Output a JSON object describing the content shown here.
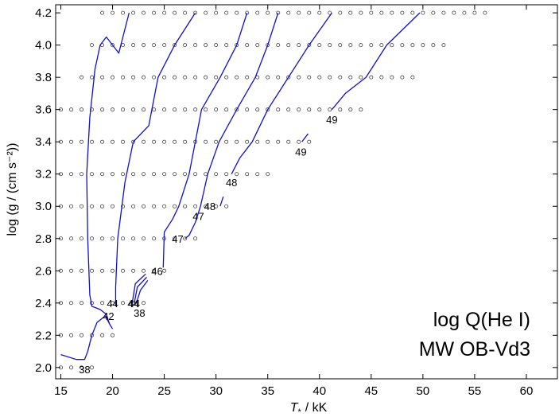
{
  "chart_data": {
    "type": "contour",
    "xlabel_main": "T",
    "xlabel_sub": "*",
    "xlabel_unit": "/ kK",
    "ylabel": "log (g / (cm s⁻²))",
    "xlim": [
      14.5,
      63
    ],
    "ylim": [
      1.93,
      4.25
    ],
    "xticks": [
      15,
      20,
      25,
      30,
      35,
      40,
      45,
      50,
      55,
      60
    ],
    "yticks": [
      2.0,
      2.2,
      2.4,
      2.6,
      2.8,
      3.0,
      3.2,
      3.4,
      3.6,
      3.8,
      4.0,
      4.2
    ],
    "ytick_labels": [
      "2.0",
      "2.2",
      "2.4",
      "2.6",
      "2.8",
      "3.0",
      "3.2",
      "3.4",
      "3.6",
      "3.8",
      "4.0",
      "4.2"
    ],
    "annotations": [
      "log Q(He I)",
      "MW OB-Vd3"
    ],
    "line_color": "#1010cc",
    "grid_points": {
      "x_step": 1,
      "rows": [
        {
          "logg": 2.0,
          "tmin": 15,
          "tmax": 18
        },
        {
          "logg": 2.2,
          "tmin": 15,
          "tmax": 20
        },
        {
          "logg": 2.4,
          "tmin": 15,
          "tmax": 23
        },
        {
          "logg": 2.6,
          "tmin": 15,
          "tmax": 25
        },
        {
          "logg": 2.8,
          "tmin": 15,
          "tmax": 28
        },
        {
          "logg": 3.0,
          "tmin": 15,
          "tmax": 31
        },
        {
          "logg": 3.2,
          "tmin": 15,
          "tmax": 35
        },
        {
          "logg": 3.4,
          "tmin": 15,
          "tmax": 39
        },
        {
          "logg": 3.6,
          "tmin": 15,
          "tmax": 44
        },
        {
          "logg": 3.8,
          "tmin": 17,
          "tmax": 49
        },
        {
          "logg": 4.0,
          "tmin": 18,
          "tmax": 52
        },
        {
          "logg": 4.2,
          "tmin": 19,
          "tmax": 56
        }
      ]
    },
    "contours": [
      {
        "level": "38",
        "points": [
          [
            15,
            2.08
          ],
          [
            16.5,
            2.05
          ],
          [
            17.3,
            2.05
          ],
          [
            17.6,
            2.1
          ],
          [
            18,
            2.2
          ],
          [
            18.5,
            2.28
          ],
          [
            19.3,
            2.32
          ],
          [
            19.8,
            2.26
          ],
          [
            20,
            2.24
          ]
        ]
      },
      {
        "level": "42",
        "points": [
          [
            19.7,
            2.27
          ],
          [
            19.4,
            2.33
          ],
          [
            18.8,
            2.36
          ],
          [
            18,
            2.38
          ],
          [
            17.8,
            2.45
          ],
          [
            17.6,
            2.8
          ],
          [
            17.5,
            3.2
          ],
          [
            17.8,
            3.55
          ],
          [
            18.3,
            3.85
          ],
          [
            18.8,
            4.0
          ],
          [
            19.4,
            4.05
          ],
          [
            20,
            4.0
          ],
          [
            20.6,
            3.95
          ],
          [
            21,
            4.05
          ],
          [
            21.6,
            4.2
          ]
        ]
      },
      {
        "level": "44",
        "points": [
          [
            20.3,
            2.38
          ],
          [
            20.3,
            2.5
          ],
          [
            20.5,
            2.8
          ],
          [
            21.2,
            3.15
          ],
          [
            22,
            3.4
          ],
          [
            23.5,
            3.5
          ],
          [
            24.4,
            3.8
          ],
          [
            26,
            4.0
          ],
          [
            28,
            4.2
          ]
        ]
      },
      {
        "level": "44",
        "points": [
          [
            21.9,
            2.4
          ],
          [
            22.2,
            2.52
          ],
          [
            23.2,
            2.58
          ]
        ]
      },
      {
        "level": "44",
        "points": [
          [
            22.1,
            2.4
          ],
          [
            22.4,
            2.5
          ],
          [
            23.3,
            2.56
          ]
        ]
      },
      {
        "level": "44",
        "points": [
          [
            22.3,
            2.4
          ],
          [
            22.7,
            2.48
          ],
          [
            23.4,
            2.54
          ]
        ]
      },
      {
        "level": "46",
        "points": [
          [
            24.9,
            2.62
          ],
          [
            25,
            2.84
          ],
          [
            25.8,
            2.92
          ],
          [
            26.4,
            3.0
          ],
          [
            27.4,
            3.2
          ],
          [
            28.6,
            3.6
          ],
          [
            30.4,
            3.8
          ],
          [
            32,
            4.0
          ],
          [
            33,
            4.2
          ]
        ]
      },
      {
        "level": "47",
        "points": [
          [
            27,
            2.8
          ],
          [
            27.4,
            2.82
          ],
          [
            28,
            2.9
          ],
          [
            28.5,
            3.0
          ],
          [
            29.2,
            3.2
          ],
          [
            30.3,
            3.4
          ],
          [
            32,
            3.6
          ],
          [
            33.8,
            3.8
          ],
          [
            35,
            4.0
          ],
          [
            36,
            4.2
          ]
        ]
      },
      {
        "level": "48",
        "points": [
          [
            30.4,
            3.0
          ],
          [
            30.7,
            3.06
          ]
        ]
      },
      {
        "level": "48",
        "points": [
          [
            31.5,
            3.2
          ],
          [
            32.3,
            3.3
          ],
          [
            33.5,
            3.4
          ],
          [
            35,
            3.6
          ],
          [
            37,
            3.8
          ],
          [
            39,
            4.0
          ],
          [
            41.2,
            4.2
          ]
        ]
      },
      {
        "level": "49",
        "points": [
          [
            38.3,
            3.4
          ],
          [
            38.9,
            3.45
          ]
        ]
      },
      {
        "level": "49",
        "points": [
          [
            41.2,
            3.6
          ],
          [
            42.5,
            3.7
          ],
          [
            44.5,
            3.8
          ],
          [
            46.5,
            4.0
          ],
          [
            49.7,
            4.2
          ]
        ]
      }
    ],
    "contour_labels": [
      {
        "text": "38",
        "x": 17.3,
        "y": 1.99
      },
      {
        "text": "42",
        "x": 19.6,
        "y": 2.32
      },
      {
        "text": "44",
        "x": 20.0,
        "y": 2.4
      },
      {
        "text": "44",
        "x": 22.0,
        "y": 2.4
      },
      {
        "text": "44",
        "x": 22.1,
        "y": 2.4
      },
      {
        "text": "38",
        "x": 22.6,
        "y": 2.34
      },
      {
        "text": "46",
        "x": 24.3,
        "y": 2.6
      },
      {
        "text": "47",
        "x": 26.3,
        "y": 2.8
      },
      {
        "text": "47",
        "x": 28.3,
        "y": 2.94
      },
      {
        "text": "48",
        "x": 29.4,
        "y": 3.0
      },
      {
        "text": "48",
        "x": 31.5,
        "y": 3.15
      },
      {
        "text": "49",
        "x": 38.2,
        "y": 3.34
      },
      {
        "text": "49",
        "x": 41.2,
        "y": 3.54
      }
    ]
  }
}
